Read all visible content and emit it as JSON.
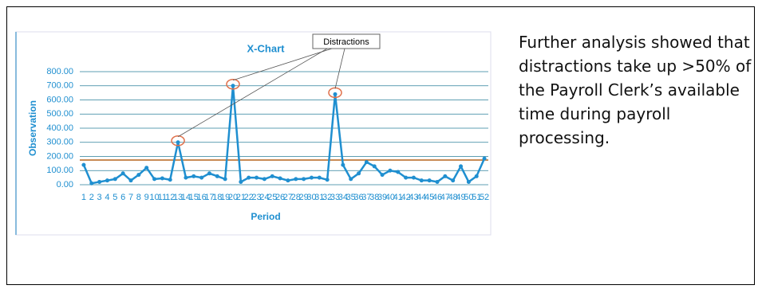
{
  "chart_data": {
    "type": "line",
    "title": "X-Chart",
    "x_label": "Period",
    "y_label": "Observation",
    "annotation": "Distractions",
    "categories": [
      "1",
      "2",
      "3",
      "4",
      "5",
      "6",
      "7",
      "8",
      "9",
      "10",
      "11",
      "12",
      "13",
      "14",
      "15",
      "16",
      "17",
      "18",
      "19",
      "20",
      "21",
      "22",
      "23",
      "24",
      "25",
      "26",
      "27",
      "28",
      "29",
      "30",
      "31",
      "32",
      "33",
      "34",
      "35",
      "36",
      "37",
      "38",
      "39",
      "40",
      "41",
      "42",
      "43",
      "44",
      "45",
      "46",
      "47",
      "48",
      "49",
      "50",
      "51",
      "52"
    ],
    "series": [
      {
        "color": "#1f8fd0",
        "values": [
          140,
          10,
          20,
          30,
          40,
          80,
          30,
          70,
          120,
          40,
          45,
          35,
          300,
          50,
          60,
          50,
          80,
          60,
          40,
          700,
          20,
          50,
          50,
          40,
          60,
          45,
          30,
          40,
          40,
          50,
          50,
          35,
          640,
          140,
          40,
          80,
          160,
          130,
          70,
          100,
          90,
          50,
          50,
          30,
          30,
          20,
          60,
          30,
          130,
          20,
          60,
          185
        ]
      }
    ],
    "limit_line": {
      "value": 175,
      "color": "#b5651d"
    },
    "ylim": [
      0,
      800
    ],
    "yticks": [
      {
        "value": 0,
        "label": "0.00"
      },
      {
        "value": 100,
        "label": "100.00"
      },
      {
        "value": 200,
        "label": "200.00"
      },
      {
        "value": 300,
        "label": "300.00"
      },
      {
        "value": 400,
        "label": "400.00"
      },
      {
        "value": 500,
        "label": "500.00"
      },
      {
        "value": 600,
        "label": "600.00"
      },
      {
        "value": 700,
        "label": "700.00"
      },
      {
        "value": 800,
        "label": "800.00"
      }
    ],
    "grid": true
  },
  "text": "Further analysis showed that distractions take up >50% of the Payroll Clerk’s available time during payroll processing."
}
